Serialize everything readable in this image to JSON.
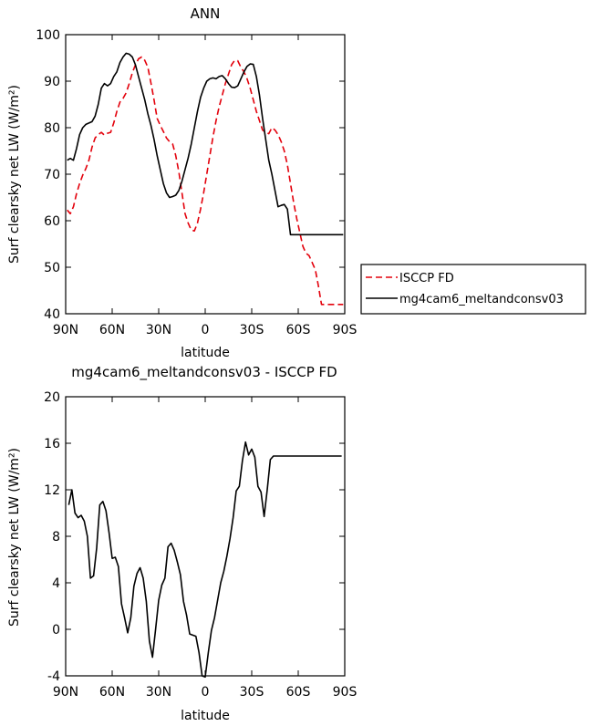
{
  "chart_data": [
    {
      "type": "line",
      "title": "ANN",
      "xlabel": "latitude",
      "ylabel": "Surf clearsky net LW (W/m²)",
      "ylim": [
        40,
        100
      ],
      "xlim": [
        90,
        -90
      ],
      "xticks": [
        90,
        60,
        30,
        0,
        -30,
        -60,
        -90
      ],
      "xtick_labels": [
        "90N",
        "60N",
        "30N",
        "0",
        "30S",
        "60S",
        "90S"
      ],
      "yticks": [
        40,
        50,
        60,
        70,
        80,
        90,
        100
      ],
      "ytick_labels": [
        "40",
        "50",
        "60",
        "70",
        "80",
        "90",
        "100"
      ],
      "legend_position": "right",
      "x": [
        89,
        87,
        85,
        83,
        81,
        79,
        77,
        75,
        73,
        71,
        69,
        67,
        65,
        63,
        61,
        59,
        57,
        55,
        53,
        51,
        49,
        47,
        45,
        43,
        41,
        39,
        37,
        35,
        33,
        31,
        29,
        27,
        25,
        23,
        21,
        19,
        17,
        15,
        13,
        11,
        9,
        7,
        5,
        3,
        1,
        -1,
        -3,
        -5,
        -7,
        -9,
        -11,
        -13,
        -15,
        -17,
        -19,
        -21,
        -23,
        -25,
        -27,
        -29,
        -31,
        -33,
        -35,
        -37,
        -39,
        -41,
        -43,
        -45,
        -47,
        -49,
        -51,
        -53,
        -55,
        -57,
        -59,
        -61,
        -63,
        -65,
        -67,
        -69,
        -71,
        -73,
        -75,
        -77,
        -79,
        -81,
        -83,
        -85,
        -87,
        -89
      ],
      "series": [
        {
          "name": "ISCCP FD",
          "color": "#e3000b",
          "dash": "dashed",
          "values": [
            62.3,
            61.5,
            63.0,
            65.8,
            68.0,
            69.8,
            71.2,
            73.0,
            75.8,
            77.8,
            78.5,
            79.0,
            78.4,
            78.8,
            79.0,
            81.0,
            83.5,
            85.5,
            86.3,
            87.5,
            89.5,
            91.8,
            93.5,
            94.8,
            95.2,
            94.5,
            93.0,
            89.6,
            86.0,
            82.0,
            80.5,
            79.2,
            77.8,
            77.0,
            76.5,
            74.0,
            70.5,
            66.0,
            61.5,
            59.5,
            58.0,
            57.8,
            59.5,
            62.5,
            66.0,
            70.0,
            74.0,
            78.0,
            81.5,
            84.5,
            87.0,
            89.5,
            91.5,
            93.5,
            94.5,
            94.4,
            93.0,
            92.0,
            90.5,
            88.5,
            86.0,
            83.5,
            81.5,
            79.5,
            79.0,
            78.7,
            80.0,
            79.5,
            78.5,
            77.0,
            75.0,
            72.0,
            68.0,
            64.0,
            60.5,
            57.5,
            54.5,
            53.0,
            52.5,
            51.0,
            49.5,
            46.0,
            42.0,
            42.0,
            42.0,
            42.0,
            42.0,
            42.0,
            42.0,
            42.0
          ]
        },
        {
          "name": "mg4cam6_meltandconsv03",
          "color": "#000000",
          "dash": "solid",
          "values": [
            73.0,
            73.4,
            73.0,
            75.5,
            78.5,
            80.0,
            80.7,
            81.0,
            81.3,
            82.5,
            85.0,
            88.5,
            89.5,
            89.0,
            89.5,
            91.0,
            92.0,
            94.0,
            95.2,
            96.0,
            95.8,
            95.2,
            93.5,
            91.0,
            88.5,
            86.0,
            83.0,
            80.5,
            77.5,
            74.0,
            71.0,
            68.0,
            66.0,
            65.0,
            65.2,
            65.5,
            66.5,
            68.5,
            71.0,
            73.5,
            76.5,
            80.0,
            83.5,
            86.5,
            88.5,
            90.0,
            90.5,
            90.7,
            90.5,
            91.0,
            91.2,
            90.5,
            89.5,
            88.7,
            88.6,
            89.0,
            90.5,
            92.0,
            93.2,
            93.7,
            93.6,
            91.0,
            87.0,
            82.0,
            77.5,
            73.0,
            70.0,
            66.5,
            63.0,
            63.3,
            63.5,
            62.5,
            57.0,
            57.0,
            57.0,
            57.0,
            57.0,
            57.0,
            57.0,
            57.0,
            57.0,
            57.0,
            57.0,
            57.0,
            57.0,
            57.0,
            57.0,
            57.0,
            57.0,
            57.0
          ]
        }
      ]
    },
    {
      "type": "line",
      "title": "mg4cam6_meltandconsv03 - ISCCP FD",
      "xlabel": "latitude",
      "ylabel": "Surf clearsky net LW (W/m²)",
      "ylim": [
        -4,
        20
      ],
      "xlim": [
        90,
        -90
      ],
      "xticks": [
        90,
        60,
        30,
        0,
        -30,
        -60,
        -90
      ],
      "xtick_labels": [
        "90N",
        "60N",
        "30N",
        "0",
        "30S",
        "60S",
        "90S"
      ],
      "yticks": [
        -4,
        0,
        4,
        8,
        12,
        16,
        20
      ],
      "ytick_labels": [
        "-4",
        "0",
        "4",
        "8",
        "12",
        "16",
        "20"
      ],
      "x": [
        88,
        86,
        84,
        82,
        80,
        78,
        76,
        74,
        72,
        70,
        68,
        66,
        64,
        62,
        60,
        58,
        56,
        54,
        52,
        50,
        48,
        46,
        44,
        42,
        40,
        38,
        36,
        34,
        32,
        30,
        28,
        26,
        24,
        22,
        20,
        18,
        16,
        14,
        12,
        10,
        8,
        6,
        4,
        2,
        0,
        -2,
        -4,
        -6,
        -8,
        -10,
        -12,
        -14,
        -16,
        -18,
        -20,
        -22,
        -24,
        -26,
        -28,
        -30,
        -32,
        -34,
        -36,
        -38,
        -40,
        -42,
        -44,
        -46,
        -48,
        -50,
        -52,
        -54,
        -56,
        -58,
        -60,
        -62,
        -64,
        -66,
        -68,
        -70,
        -72,
        -74,
        -76,
        -78,
        -80,
        -82,
        -84,
        -86,
        -88
      ],
      "series": [
        {
          "name": "",
          "color": "#000000",
          "values": [
            10.7,
            12.0,
            10.0,
            9.6,
            9.8,
            9.3,
            8.0,
            4.4,
            4.6,
            7.0,
            10.7,
            11.0,
            10.2,
            8.3,
            6.1,
            6.2,
            5.4,
            2.2,
            1.0,
            -0.3,
            1.0,
            3.7,
            4.8,
            5.3,
            4.4,
            2.4,
            -1.0,
            -2.4,
            0.0,
            2.5,
            3.8,
            4.4,
            7.1,
            7.4,
            6.8,
            5.8,
            4.7,
            2.4,
            1.2,
            -0.4,
            -0.5,
            -0.6,
            -2.0,
            -4.0,
            -4.1,
            -2.0,
            -0.1,
            1.0,
            2.5,
            4.0,
            5.0,
            6.3,
            7.8,
            9.6,
            11.9,
            12.3,
            14.5,
            16.1,
            15.0,
            15.5,
            14.8,
            12.3,
            11.8,
            9.7,
            12.0,
            14.6,
            14.9,
            14.9,
            14.9,
            14.9,
            14.9,
            14.9,
            14.9,
            14.9,
            14.9,
            14.9,
            14.9,
            14.9,
            14.9,
            14.9,
            14.9,
            14.9,
            14.9,
            14.9,
            14.9,
            14.9,
            14.9,
            14.9,
            14.9
          ]
        }
      ]
    }
  ]
}
